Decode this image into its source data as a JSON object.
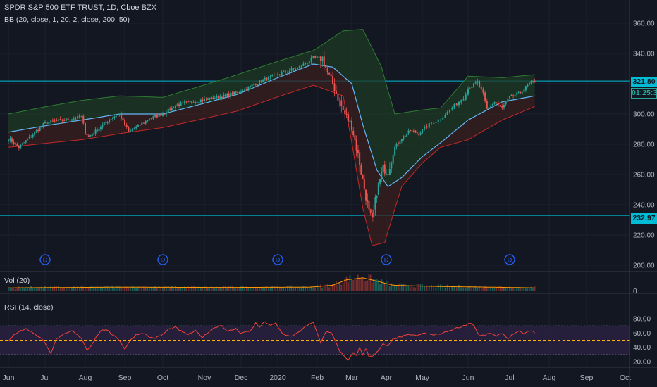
{
  "header": {
    "symbol_line": "SPDR S&P 500 ETF TRUST, 1D, Cboe BZX",
    "bb_line": "BB (20, close, 1, 20, 2, close, 200, 50)",
    "vol_line": "Vol (20)",
    "rsi_line": "RSI (14, close)"
  },
  "price_tags": {
    "upper": "321.80",
    "countdown": "01:25:38",
    "lower": "232.97"
  },
  "colors": {
    "background": "#131722",
    "up": "#26a69a",
    "down": "#ef5350",
    "bb_inner_fill": "#1e3a24",
    "bb_outer_fill": "#3a1f1f",
    "basis_line": "#64b5f6",
    "hline": "#00bcd4",
    "rsi_line": "#f44336",
    "rsi_band": "#2a2141",
    "volume_ma": "#ff9800",
    "dividend_marker": "#2962ff"
  },
  "chart_data": {
    "type": "candlestick",
    "title": "SPDR S&P 500 ETF TRUST, 1D, Cboe BZX",
    "x_tick_labels": [
      "Jun",
      "Jul",
      "Aug",
      "Sep",
      "Oct",
      "Nov",
      "Dec",
      "2020",
      "Feb",
      "Mar",
      "Apr",
      "May",
      "Jun",
      "Jul",
      "Aug",
      "Sep",
      "Oct"
    ],
    "y_tick_labels": [
      "200.00",
      "220.00",
      "240.00",
      "260.00",
      "280.00",
      "300.00",
      "320.00",
      "340.00",
      "360.00"
    ],
    "ylim": [
      196,
      370
    ],
    "month_index": [
      0,
      21,
      42,
      65,
      85,
      108,
      129,
      149,
      169,
      189,
      211,
      232,
      252,
      274,
      296,
      317,
      338
    ],
    "close_keypoints": [
      [
        0,
        284
      ],
      [
        6,
        278
      ],
      [
        21,
        294
      ],
      [
        40,
        298
      ],
      [
        42,
        288
      ],
      [
        44,
        285
      ],
      [
        58,
        298
      ],
      [
        62,
        300
      ],
      [
        67,
        288
      ],
      [
        78,
        297
      ],
      [
        85,
        300
      ],
      [
        93,
        306
      ],
      [
        105,
        309
      ],
      [
        115,
        311
      ],
      [
        127,
        314
      ],
      [
        140,
        322
      ],
      [
        149,
        326
      ],
      [
        160,
        331
      ],
      [
        167,
        337
      ],
      [
        172,
        337
      ],
      [
        175,
        327
      ],
      [
        178,
        320
      ],
      [
        184,
        302
      ],
      [
        189,
        292
      ],
      [
        193,
        273
      ],
      [
        196,
        256
      ],
      [
        200,
        235
      ],
      [
        202,
        229
      ],
      [
        205,
        249
      ],
      [
        209,
        264
      ],
      [
        212,
        262
      ],
      [
        216,
        278
      ],
      [
        220,
        284
      ],
      [
        225,
        289
      ],
      [
        230,
        287
      ],
      [
        235,
        293
      ],
      [
        240,
        297
      ],
      [
        245,
        304
      ],
      [
        250,
        311
      ],
      [
        252,
        317
      ],
      [
        257,
        321
      ],
      [
        260,
        313
      ],
      [
        262,
        303
      ],
      [
        266,
        308
      ],
      [
        270,
        304
      ],
      [
        274,
        311
      ],
      [
        280,
        314
      ],
      [
        285,
        320
      ],
      [
        288,
        322
      ]
    ],
    "bb_upper_keypoints": [
      [
        0,
        300
      ],
      [
        40,
        309
      ],
      [
        62,
        312
      ],
      [
        85,
        311
      ],
      [
        127,
        326
      ],
      [
        167,
        342
      ],
      [
        184,
        355
      ],
      [
        196,
        356
      ],
      [
        208,
        331
      ],
      [
        216,
        300
      ],
      [
        240,
        304
      ],
      [
        252,
        325
      ],
      [
        270,
        324
      ],
      [
        288,
        326
      ]
    ],
    "bb_lower_keypoints": [
      [
        0,
        278
      ],
      [
        40,
        283
      ],
      [
        62,
        287
      ],
      [
        85,
        291
      ],
      [
        127,
        302
      ],
      [
        167,
        319
      ],
      [
        184,
        312
      ],
      [
        196,
        238
      ],
      [
        202,
        213
      ],
      [
        210,
        215
      ],
      [
        220,
        252
      ],
      [
        240,
        278
      ],
      [
        252,
        283
      ],
      [
        270,
        296
      ],
      [
        288,
        305
      ]
    ],
    "basis_keypoints": [
      [
        0,
        288
      ],
      [
        40,
        296
      ],
      [
        62,
        300
      ],
      [
        85,
        300
      ],
      [
        127,
        313
      ],
      [
        167,
        333
      ],
      [
        178,
        331
      ],
      [
        189,
        320
      ],
      [
        196,
        293
      ],
      [
        205,
        263
      ],
      [
        212,
        252
      ],
      [
        220,
        258
      ],
      [
        240,
        281
      ],
      [
        252,
        296
      ],
      [
        270,
        308
      ],
      [
        288,
        312
      ]
    ],
    "horizontal_lines": [
      321.8,
      232.97
    ],
    "dividend_marker_label": "D",
    "dividend_marker_index": [
      21,
      85,
      149,
      211,
      274
    ],
    "volume": {
      "y_tick_label": "0",
      "spike_keypoints": [
        [
          0,
          0.25
        ],
        [
          60,
          0.3
        ],
        [
          120,
          0.28
        ],
        [
          165,
          0.3
        ],
        [
          178,
          0.45
        ],
        [
          186,
          0.85
        ],
        [
          196,
          1.0
        ],
        [
          205,
          0.75
        ],
        [
          215,
          0.45
        ],
        [
          240,
          0.35
        ],
        [
          288,
          0.25
        ]
      ]
    },
    "rsi": {
      "y_tick_labels": [
        "20.00",
        "40.00",
        "60.00",
        "80.00"
      ],
      "ylim": [
        12,
        86
      ],
      "band": [
        30,
        70
      ],
      "midline": 50,
      "keypoints": [
        [
          0,
          48
        ],
        [
          3,
          58
        ],
        [
          6,
          62
        ],
        [
          10,
          66
        ],
        [
          15,
          59
        ],
        [
          19,
          52
        ],
        [
          22,
          42
        ],
        [
          24,
          32
        ],
        [
          27,
          52
        ],
        [
          31,
          58
        ],
        [
          35,
          63
        ],
        [
          40,
          53
        ],
        [
          43,
          36
        ],
        [
          46,
          45
        ],
        [
          49,
          57
        ],
        [
          52,
          65
        ],
        [
          55,
          63
        ],
        [
          57,
          59
        ],
        [
          60,
          55
        ],
        [
          62,
          49
        ],
        [
          65,
          38
        ],
        [
          68,
          50
        ],
        [
          71,
          58
        ],
        [
          75,
          60
        ],
        [
          78,
          54
        ],
        [
          81,
          53
        ],
        [
          85,
          58
        ],
        [
          88,
          65
        ],
        [
          92,
          68
        ],
        [
          96,
          61
        ],
        [
          99,
          58
        ],
        [
          103,
          63
        ],
        [
          107,
          54
        ],
        [
          110,
          61
        ],
        [
          114,
          68
        ],
        [
          118,
          71
        ],
        [
          121,
          62
        ],
        [
          126,
          66
        ],
        [
          129,
          60
        ],
        [
          134,
          63
        ],
        [
          137,
          74
        ],
        [
          139,
          68
        ],
        [
          142,
          76
        ],
        [
          145,
          70
        ],
        [
          148,
          74
        ],
        [
          151,
          60
        ],
        [
          155,
          55
        ],
        [
          158,
          58
        ],
        [
          162,
          67
        ],
        [
          165,
          72
        ],
        [
          167,
          75
        ],
        [
          169,
          60
        ],
        [
          171,
          47
        ],
        [
          174,
          62
        ],
        [
          177,
          60
        ],
        [
          179,
          52
        ],
        [
          182,
          35
        ],
        [
          185,
          26
        ],
        [
          187,
          22
        ],
        [
          190,
          33
        ],
        [
          192,
          28
        ],
        [
          194,
          40
        ],
        [
          196,
          30
        ],
        [
          198,
          38
        ],
        [
          200,
          27
        ],
        [
          203,
          29
        ],
        [
          206,
          35
        ],
        [
          209,
          45
        ],
        [
          212,
          41
        ],
        [
          215,
          52
        ],
        [
          220,
          55
        ],
        [
          225,
          58
        ],
        [
          229,
          56
        ],
        [
          233,
          60
        ],
        [
          237,
          57
        ],
        [
          241,
          60
        ],
        [
          246,
          66
        ],
        [
          250,
          70
        ],
        [
          252,
          73
        ],
        [
          254,
          74
        ],
        [
          256,
          66
        ],
        [
          258,
          56
        ],
        [
          261,
          57
        ],
        [
          264,
          60
        ],
        [
          267,
          55
        ],
        [
          270,
          60
        ],
        [
          273,
          52
        ],
        [
          276,
          59
        ],
        [
          279,
          62
        ],
        [
          282,
          59
        ],
        [
          285,
          63
        ],
        [
          288,
          61
        ]
      ]
    }
  }
}
